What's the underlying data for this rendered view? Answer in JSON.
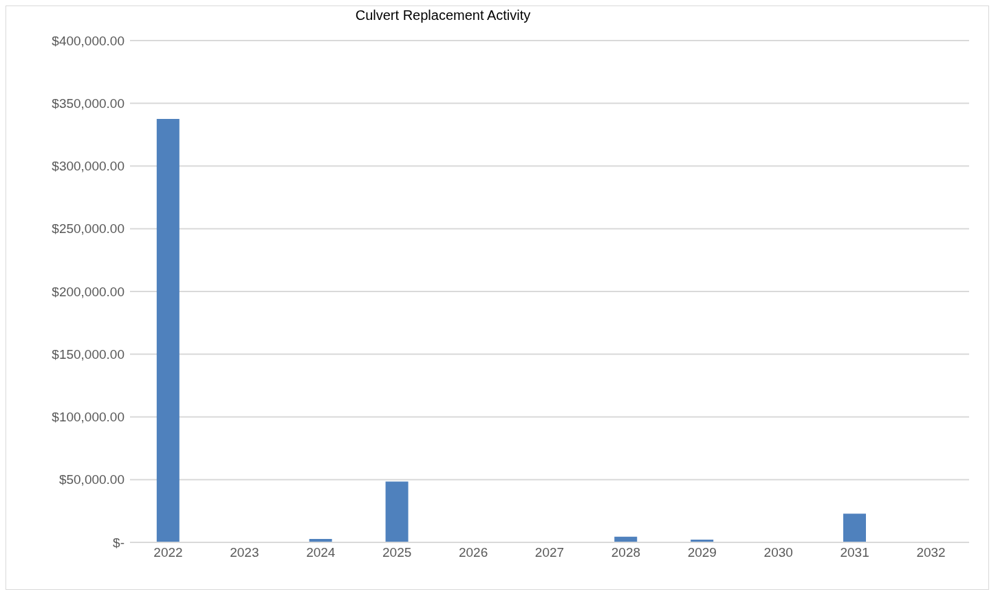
{
  "chart_data": {
    "type": "bar",
    "title": "Culvert Replacement Activity",
    "categories": [
      "2022",
      "2023",
      "2024",
      "2025",
      "2026",
      "2027",
      "2028",
      "2029",
      "2030",
      "2031",
      "2032"
    ],
    "values": [
      337500,
      0,
      2800,
      48500,
      0,
      0,
      4500,
      2200,
      0,
      22900,
      0
    ],
    "color": "#4f81bd",
    "ylim": [
      0,
      400000
    ],
    "yticks": [
      {
        "value": 0,
        "label": "$-"
      },
      {
        "value": 50000,
        "label": "$50,000.00"
      },
      {
        "value": 100000,
        "label": "$100,000.00"
      },
      {
        "value": 150000,
        "label": "$150,000.00"
      },
      {
        "value": 200000,
        "label": "$200,000.00"
      },
      {
        "value": 250000,
        "label": "$250,000.00"
      },
      {
        "value": 300000,
        "label": "$300,000.00"
      },
      {
        "value": 350000,
        "label": "$350,000.00"
      },
      {
        "value": 400000,
        "label": "$400,000.00"
      }
    ],
    "grid": "y",
    "legend": false
  }
}
